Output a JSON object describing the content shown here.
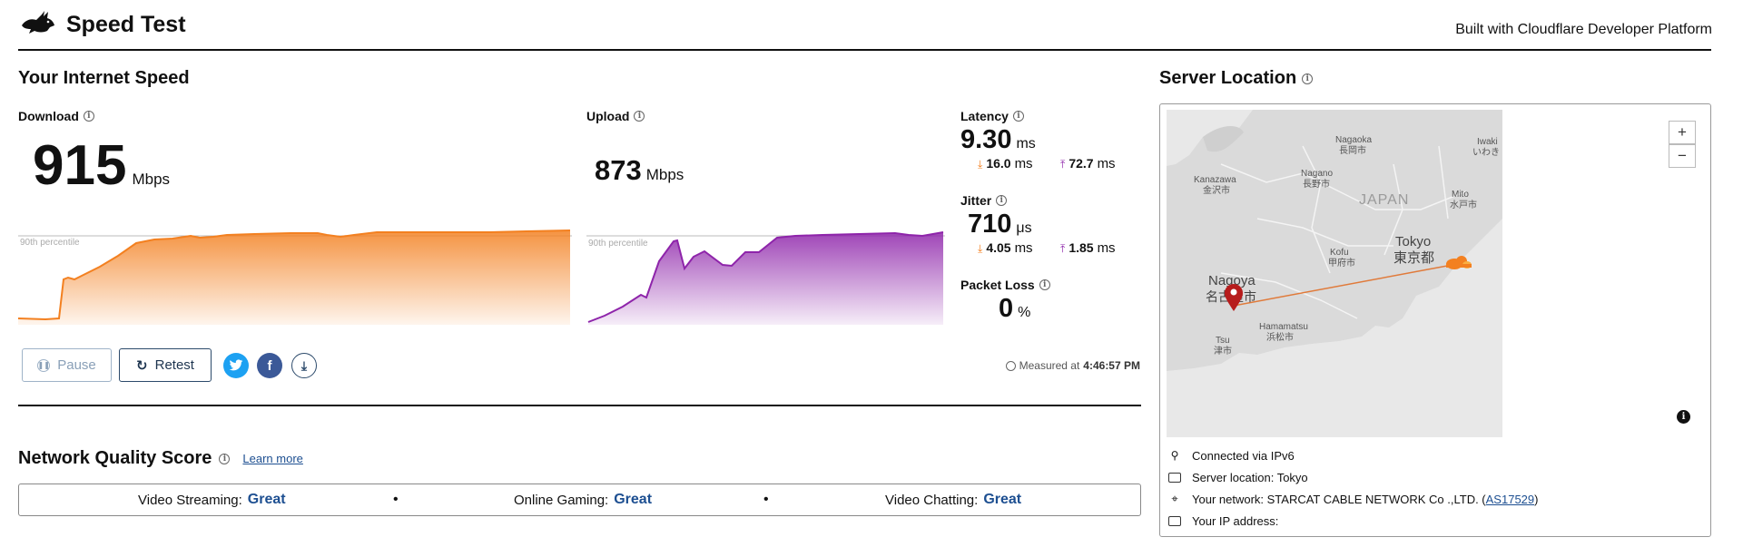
{
  "header": {
    "title": "Speed Test",
    "built_with": "Built with Cloudflare Developer Platform"
  },
  "speed": {
    "section_title": "Your Internet Speed",
    "download": {
      "label": "Download",
      "value": "915",
      "unit": "Mbps",
      "percentile_label": "90th percentile"
    },
    "upload": {
      "label": "Upload",
      "value": "873",
      "unit": "Mbps",
      "percentile_label": "90th percentile"
    },
    "latency": {
      "label": "Latency",
      "value": "9.30",
      "unit": "ms",
      "down_value": "16.0",
      "down_unit": "ms",
      "up_value": "72.7",
      "up_unit": "ms"
    },
    "jitter": {
      "label": "Jitter",
      "value": "710",
      "unit": "μs",
      "down_value": "4.05",
      "down_unit": "ms",
      "up_value": "1.85",
      "up_unit": "ms"
    },
    "packet_loss": {
      "label": "Packet Loss",
      "value": "0",
      "unit": "%"
    }
  },
  "controls": {
    "pause_label": "Pause",
    "retest_label": "Retest",
    "measured_prefix": "Measured at",
    "measured_time": "4:46:57 PM"
  },
  "quality": {
    "section_title": "Network Quality Score",
    "learn_more": "Learn more",
    "items": [
      {
        "label": "Video Streaming:",
        "value": "Great"
      },
      {
        "label": "Online Gaming:",
        "value": "Great"
      },
      {
        "label": "Video Chatting:",
        "value": "Great"
      }
    ],
    "separator": "•"
  },
  "server": {
    "section_title": "Server Location",
    "connected_via": "Connected via IPv6",
    "server_location": "Server location: Tokyo",
    "network_prefix": "Your network: STARCAT CABLE NETWORK Co .,LTD. (",
    "network_asn": "AS17529",
    "network_suffix": ")",
    "ip_address": "Your IP address:"
  },
  "map": {
    "labels": {
      "nagaoka": "Nagaoka",
      "nagaoka_jp": "長岡市",
      "iwaki": "Iwaki",
      "iwaki_jp": "いわき",
      "kanazawa": "Kanazawa",
      "kanazawa_jp": "金沢市",
      "nagano": "Nagano",
      "nagano_jp": "長野市",
      "japan": "JAPAN",
      "mito": "Mito",
      "mito_jp": "水戸市",
      "tokyo": "Tokyo",
      "tokyo_jp": "東京都",
      "kofu": "Kofu",
      "kofu_jp": "甲府市",
      "nagoya": "Nagoya",
      "nagoya_jp": "名古屋市",
      "hamamatsu": "Hamamatsu",
      "hamamatsu_jp": "浜松市",
      "tsu": "Tsu",
      "tsu_jp": "津市"
    },
    "zoom_in": "+",
    "zoom_out": "−",
    "colors": {
      "download": "#f38020",
      "upload": "#8e24aa",
      "marker": "#b71c1c"
    }
  }
}
